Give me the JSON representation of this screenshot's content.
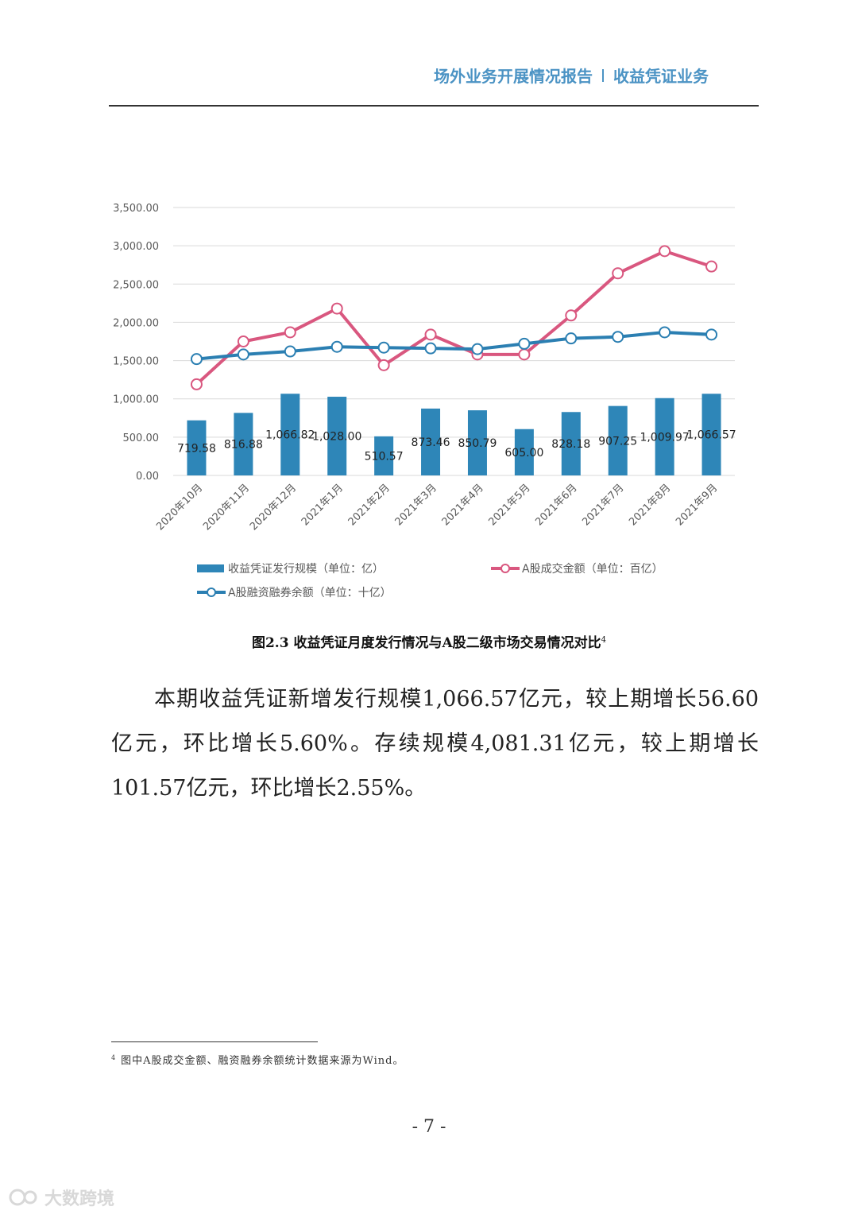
{
  "header": {
    "left": "场外业务开展情况报告",
    "right": "收益凭证业务"
  },
  "chart_data": {
    "type": "bar",
    "categories": [
      "2020年10月",
      "2020年11月",
      "2020年12月",
      "2021年1月",
      "2021年2月",
      "2021年3月",
      "2021年4月",
      "2021年5月",
      "2021年6月",
      "2021年7月",
      "2021年8月",
      "2021年9月"
    ],
    "series": [
      {
        "name": "收益凭证发行规模（单位：亿）",
        "type": "bar",
        "color": "#2e86b8",
        "values": [
          719.58,
          816.88,
          1066.82,
          1028.0,
          510.57,
          873.46,
          850.79,
          605.0,
          828.18,
          907.25,
          1009.97,
          1066.57
        ],
        "value_labels": [
          "719.58",
          "816.88",
          "1,066.82",
          "1,028.00",
          "510.57",
          "873.46",
          "850.79",
          "605.00",
          "828.18",
          "907.25",
          "1,009.97",
          "1,066.57"
        ]
      },
      {
        "name": "A股成交金额（单位：百亿）",
        "type": "line",
        "color": "#d9577f",
        "values": [
          1190,
          1750,
          1870,
          2180,
          1440,
          1840,
          1580,
          1580,
          2090,
          2640,
          2930,
          2730
        ]
      },
      {
        "name": "A股融资融券余额（单位：十亿）",
        "type": "line",
        "color": "#2b7fb2",
        "values": [
          1520,
          1580,
          1620,
          1680,
          1670,
          1660,
          1650,
          1720,
          1790,
          1810,
          1870,
          1840
        ]
      }
    ],
    "ylim": [
      0,
      3500
    ],
    "yticks": [
      {
        "value": 0,
        "label": "0.00"
      },
      {
        "value": 500,
        "label": "500.00"
      },
      {
        "value": 1000,
        "label": "1,000.00"
      },
      {
        "value": 1500,
        "label": "1,500.00"
      },
      {
        "value": 2000,
        "label": "2,000.00"
      },
      {
        "value": 2500,
        "label": "2,500.00"
      },
      {
        "value": 3000,
        "label": "3,000.00"
      },
      {
        "value": 3500,
        "label": "3,500.00"
      }
    ],
    "grid": true
  },
  "caption": {
    "text": "图2.3 收益凭证月度发行情况与A股二级市场交易情况对比",
    "footnote_ref": "4"
  },
  "paragraph": "本期收益凭证新增发行规模1,066.57亿元，较上期增长56.60亿元，环比增长5.60%。存续规模4,081.31亿元，较上期增长101.57亿元，环比增长2.55%。",
  "footnote": {
    "ref": "4",
    "text": "图中A股成交金额、融资融券余额统计数据来源为Wind。"
  },
  "page_number": "- 7 -",
  "watermark": "大数跨境"
}
